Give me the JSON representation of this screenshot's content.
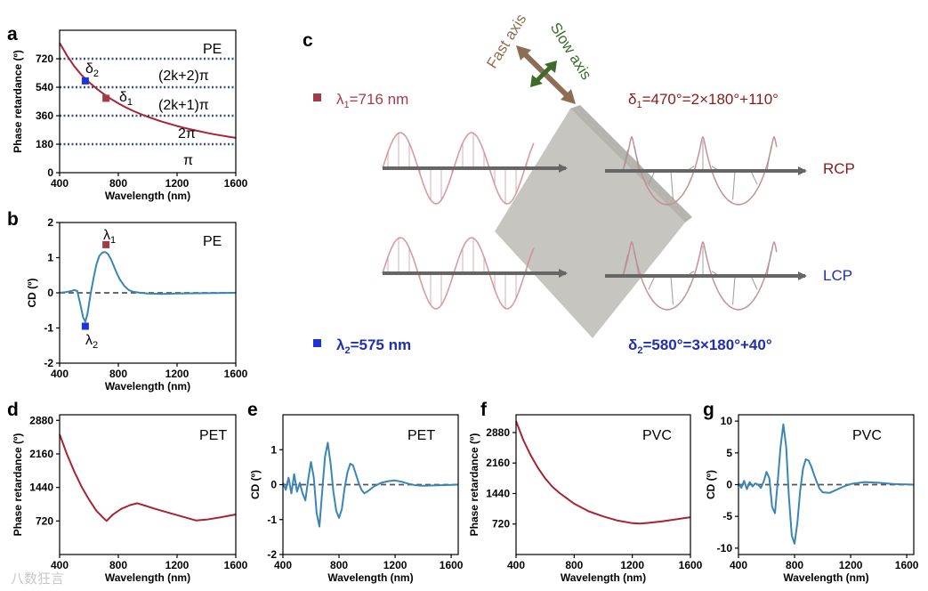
{
  "panels": {
    "a": {
      "label": "a",
      "material": "PE",
      "ylabel": "Phase retardance (º)",
      "xlabel": "Wavelength (nm)",
      "zones": [
        "(2k+2)π",
        "(2k+1)π",
        "2π",
        "π"
      ],
      "delta2": "δ",
      "delta2_sub": "2",
      "delta1": "δ",
      "delta1_sub": "1"
    },
    "b": {
      "label": "b",
      "material": "PE",
      "ylabel": "CD (º)",
      "xlabel": "Wavelength (nm)",
      "lambda1": "λ",
      "lambda1_sub": "1",
      "lambda2": "λ",
      "lambda2_sub": "2"
    },
    "c": {
      "label": "c",
      "fast_axis": "Fast axis",
      "slow_axis": "Slow axis",
      "lambda1_text": "=716 nm",
      "lambda2_text": "=575 nm",
      "delta1_text": "=470°=2×180°+110°",
      "delta2_text": "=580°=3×180°+40°",
      "rcp": "RCP",
      "lcp": "LCP"
    },
    "d": {
      "label": "d",
      "material": "PET",
      "ylabel": "Phase retardance (º)",
      "xlabel": "Wavelength (nm)"
    },
    "e": {
      "label": "e",
      "material": "PET",
      "ylabel": "CD (º)",
      "xlabel": "Wavelength (nm)"
    },
    "f": {
      "label": "f",
      "material": "PVC",
      "ylabel": "Phase retardance (º)",
      "xlabel": "Wavelength (nm)"
    },
    "g": {
      "label": "g",
      "material": "PVC",
      "ylabel": "CD (º)",
      "xlabel": "Wavelength (nm)"
    }
  },
  "watermark": "八数狂言",
  "colors": {
    "retardance": "#a8242f",
    "cd": "#3a85b5",
    "dash": "#555555",
    "grid": "#3e5078",
    "marker_red": "#a33b47",
    "marker_blue": "#1f33d6",
    "dark_red": "#8b1a1a",
    "dark_blue": "#1f2fb0",
    "fast": "#8d6e55",
    "slow": "#3d6b2a"
  },
  "chart_data": [
    {
      "id": "a",
      "type": "line",
      "title": "PE",
      "xlabel": "Wavelength (nm)",
      "ylabel": "Phase retardance (º)",
      "xlim": [
        400,
        1600
      ],
      "ylim": [
        0,
        900
      ],
      "xticks": [
        400,
        800,
        1200,
        1600
      ],
      "yticks": [
        0,
        180,
        360,
        540,
        720
      ],
      "hlines": [
        180,
        360,
        540,
        720
      ],
      "x": [
        400,
        450,
        500,
        550,
        600,
        650,
        700,
        750,
        800,
        850,
        900,
        950,
        1000,
        1050,
        1100,
        1150,
        1200,
        1250,
        1300,
        1350,
        1400,
        1450,
        1500,
        1550,
        1600
      ],
      "y": [
        820,
        740,
        672,
        616,
        572,
        532,
        497,
        466,
        438,
        413,
        391,
        371,
        353,
        337,
        322,
        308,
        295,
        283,
        272,
        262,
        252,
        243,
        235,
        227,
        220
      ],
      "points": [
        {
          "name": "δ2",
          "x": 575,
          "y": 580
        },
        {
          "name": "δ1",
          "x": 716,
          "y": 470
        }
      ]
    },
    {
      "id": "b",
      "type": "line",
      "title": "PE",
      "xlabel": "Wavelength (nm)",
      "ylabel": "CD (º)",
      "xlim": [
        400,
        1600
      ],
      "ylim": [
        -2,
        2
      ],
      "xticks": [
        400,
        800,
        1200,
        1600
      ],
      "yticks": [
        -2,
        -1,
        0,
        1,
        2
      ],
      "x": [
        400,
        440,
        480,
        500,
        520,
        540,
        560,
        575,
        590,
        610,
        630,
        650,
        670,
        690,
        705,
        716,
        730,
        750,
        770,
        790,
        810,
        840,
        870,
        900,
        950,
        1000,
        1100,
        1200,
        1400,
        1600
      ],
      "y": [
        0.0,
        0.02,
        0.05,
        0.08,
        0.05,
        -0.3,
        -0.7,
        -0.82,
        -0.6,
        -0.05,
        0.4,
        0.8,
        1.05,
        1.14,
        1.16,
        1.15,
        1.1,
        0.95,
        0.75,
        0.55,
        0.38,
        0.2,
        0.08,
        0.03,
        0.0,
        -0.02,
        -0.03,
        -0.02,
        -0.01,
        0.0
      ],
      "points": [
        {
          "name": "λ1",
          "x": 716,
          "y": 1.37
        },
        {
          "name": "λ2",
          "x": 575,
          "y": -0.95
        }
      ]
    },
    {
      "id": "d",
      "type": "line",
      "title": "PET",
      "xlabel": "Wavelength (nm)",
      "ylabel": "Phase retardance (º)",
      "xlim": [
        400,
        1600
      ],
      "ylim": [
        0,
        3000
      ],
      "xticks": [
        400,
        800,
        1200,
        1600
      ],
      "yticks": [
        720,
        1440,
        2160,
        2880
      ],
      "x": [
        400,
        450,
        500,
        550,
        600,
        650,
        700,
        720,
        760,
        820,
        880,
        930,
        980,
        1050,
        1150,
        1250,
        1330,
        1400,
        1500,
        1600
      ],
      "y": [
        2580,
        2150,
        1780,
        1450,
        1180,
        940,
        780,
        720,
        850,
        980,
        1060,
        1100,
        1050,
        980,
        890,
        800,
        730,
        750,
        800,
        860
      ]
    },
    {
      "id": "e",
      "type": "line",
      "title": "PET",
      "xlabel": "Wavelength (nm)",
      "ylabel": "CD (º)",
      "xlim": [
        400,
        1650
      ],
      "ylim": [
        -2,
        2
      ],
      "xticks": [
        400,
        800,
        1200,
        1600
      ],
      "yticks": [
        -2,
        -1,
        0,
        1
      ],
      "x": [
        400,
        420,
        440,
        460,
        480,
        500,
        520,
        540,
        560,
        580,
        600,
        620,
        640,
        660,
        680,
        700,
        720,
        740,
        760,
        780,
        800,
        820,
        840,
        860,
        880,
        900,
        920,
        940,
        960,
        980,
        1000,
        1050,
        1100,
        1150,
        1200,
        1250,
        1300,
        1350,
        1400,
        1500,
        1650
      ],
      "y": [
        0.05,
        -0.15,
        0.2,
        -0.25,
        0.3,
        -0.2,
        0.05,
        -0.25,
        -0.45,
        0.15,
        0.65,
        0.2,
        -0.8,
        -1.2,
        -0.2,
        0.8,
        1.2,
        0.6,
        -0.2,
        -0.75,
        -0.95,
        -0.7,
        -0.1,
        0.35,
        0.6,
        0.55,
        0.3,
        0.05,
        -0.15,
        -0.25,
        -0.2,
        -0.05,
        0.05,
        0.1,
        0.12,
        0.08,
        0.02,
        -0.02,
        -0.03,
        -0.02,
        0.0
      ]
    },
    {
      "id": "f",
      "type": "line",
      "title": "PVC",
      "xlabel": "Wavelength (nm)",
      "ylabel": "Phase retardance (º)",
      "xlim": [
        400,
        1600
      ],
      "ylim": [
        0,
        3300
      ],
      "xticks": [
        400,
        800,
        1200,
        1600
      ],
      "yticks": [
        720,
        1440,
        2160,
        2880
      ],
      "x": [
        400,
        450,
        500,
        550,
        600,
        650,
        700,
        800,
        900,
        1000,
        1100,
        1200,
        1250,
        1300,
        1400,
        1500,
        1600
      ],
      "y": [
        3150,
        2700,
        2350,
        2050,
        1800,
        1600,
        1450,
        1200,
        1020,
        900,
        800,
        740,
        730,
        745,
        780,
        830,
        880
      ]
    },
    {
      "id": "g",
      "type": "line",
      "title": "PVC",
      "xlabel": "Wavelength (nm)",
      "ylabel": "CD (º)",
      "xlim": [
        400,
        1650
      ],
      "ylim": [
        -11,
        11
      ],
      "xticks": [
        400,
        800,
        1200,
        1600
      ],
      "yticks": [
        -10,
        -5,
        0,
        5,
        10
      ],
      "x": [
        400,
        420,
        440,
        460,
        480,
        500,
        520,
        540,
        560,
        580,
        600,
        620,
        640,
        660,
        680,
        700,
        720,
        740,
        760,
        780,
        800,
        820,
        840,
        860,
        880,
        900,
        920,
        940,
        960,
        980,
        1000,
        1050,
        1100,
        1150,
        1200,
        1300,
        1400,
        1500,
        1650
      ],
      "y": [
        0.2,
        -0.5,
        0.6,
        -0.7,
        0.4,
        -0.3,
        0.2,
        0.0,
        -0.5,
        0.5,
        2.0,
        1.0,
        -3.5,
        -4.5,
        0.5,
        6.0,
        9.5,
        6.0,
        -2.0,
        -8.0,
        -9.3,
        -6.0,
        -1.0,
        2.5,
        4.0,
        3.8,
        2.8,
        1.5,
        0.3,
        -0.7,
        -1.2,
        -1.3,
        -0.8,
        -0.3,
        0.1,
        0.4,
        0.3,
        0.1,
        0.0
      ]
    }
  ]
}
